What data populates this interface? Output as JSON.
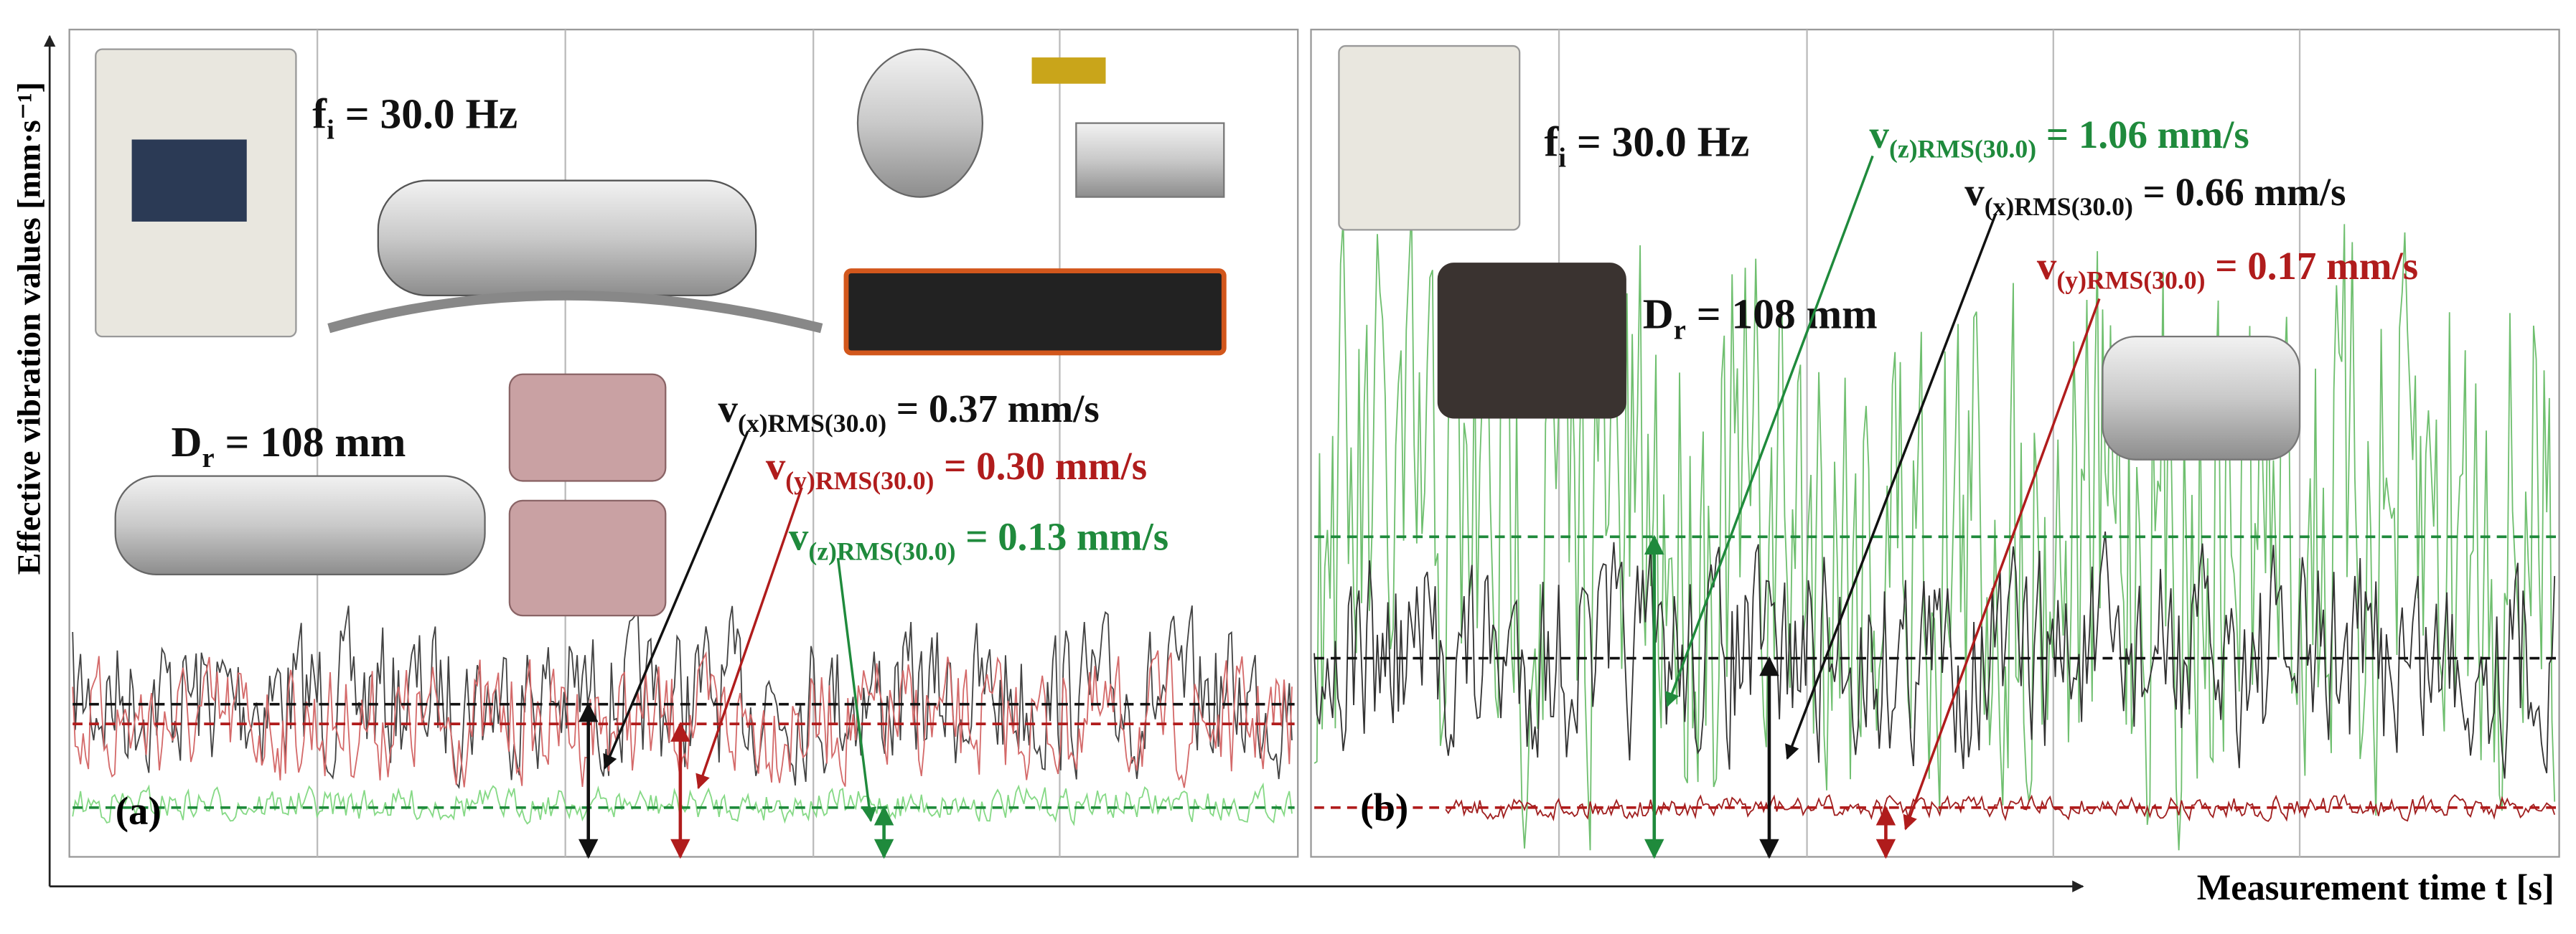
{
  "figure": {
    "y_axis_label": "Effective vibration values [mm·s⁻¹]",
    "x_axis_label": "Measurement time t [s]",
    "panels": [
      {
        "label": "(a)",
        "frequency": {
          "symbol": "f",
          "subscript": "i",
          "text": " = 30.0 Hz"
        },
        "diameter": {
          "symbol": "D",
          "subscript": "r",
          "text": " = 108 mm"
        },
        "annotations": [
          {
            "symbol": "v",
            "subscript": "(x)RMS(30.0)",
            "text": " = 0.37 mm/s"
          },
          {
            "symbol": "v",
            "subscript": "(y)RMS(30.0)",
            "text": " = 0.30 mm/s"
          },
          {
            "symbol": "v",
            "subscript": "(z)RMS(30.0)",
            "text": " = 0.13 mm/s"
          }
        ]
      },
      {
        "label": "(b)",
        "frequency": {
          "symbol": "f",
          "subscript": "i",
          "text": " = 30.0 Hz"
        },
        "diameter": {
          "symbol": "D",
          "subscript": "r",
          "text": " = 108 mm"
        },
        "annotations": [
          {
            "symbol": "v",
            "subscript": "(z)RMS(30.0)",
            "text": " = 1.06 mm/s"
          },
          {
            "symbol": "v",
            "subscript": "(x)RMS(30.0)",
            "text": " = 0.66 mm/s"
          },
          {
            "symbol": "v",
            "subscript": "(y)RMS(30.0)",
            "text": " = 0.17 mm/s"
          }
        ]
      }
    ]
  }
}
